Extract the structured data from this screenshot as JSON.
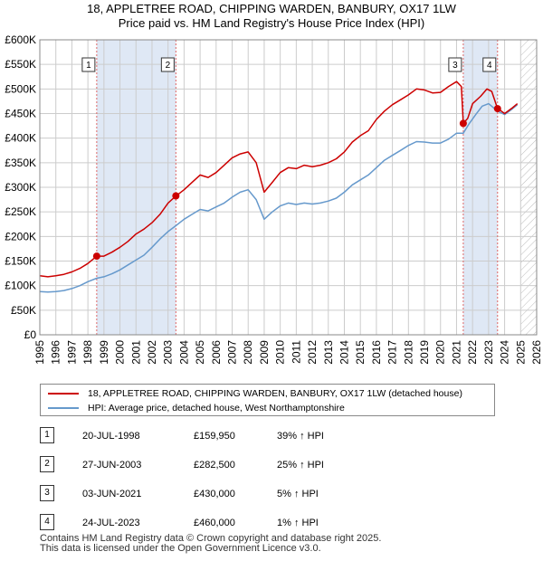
{
  "header": {
    "title_line1": "18, APPLETREE ROAD, CHIPPING WARDEN, BANBURY, OX17 1LW",
    "title_line2": "Price paid vs. HM Land Registry's House Price Index (HPI)"
  },
  "colors": {
    "property": "#cc0000",
    "hpi": "#6699cc",
    "shade": "#dfe8f5",
    "marker_line": "#dd6666",
    "grid": "#cccccc"
  },
  "chart_data": {
    "type": "line",
    "xlim": [
      1995,
      2026
    ],
    "ylim": [
      0,
      600000
    ],
    "x_ticks": [
      "1995",
      "1996",
      "1997",
      "1998",
      "1999",
      "2000",
      "2001",
      "2002",
      "2003",
      "2004",
      "2005",
      "2006",
      "2007",
      "2008",
      "2009",
      "2010",
      "2011",
      "2012",
      "2013",
      "2014",
      "2015",
      "2016",
      "2017",
      "2018",
      "2019",
      "2020",
      "2021",
      "2022",
      "2023",
      "2024",
      "2025",
      "2026"
    ],
    "y_ticks": [
      {
        "value": 0,
        "label": "£0"
      },
      {
        "value": 50000,
        "label": "£50K"
      },
      {
        "value": 100000,
        "label": "£100K"
      },
      {
        "value": 150000,
        "label": "£150K"
      },
      {
        "value": 200000,
        "label": "£200K"
      },
      {
        "value": 250000,
        "label": "£250K"
      },
      {
        "value": 300000,
        "label": "£300K"
      },
      {
        "value": 350000,
        "label": "£350K"
      },
      {
        "value": 400000,
        "label": "£400K"
      },
      {
        "value": 450000,
        "label": "£450K"
      },
      {
        "value": 500000,
        "label": "£500K"
      },
      {
        "value": 550000,
        "label": "£550K"
      },
      {
        "value": 600000,
        "label": "£600K"
      }
    ],
    "shaded_ranges": [
      [
        1998.55,
        2003.49
      ],
      [
        2021.42,
        2023.56
      ]
    ],
    "hatch_from": 2025.0,
    "series": [
      {
        "name": "18, APPLETREE ROAD, CHIPPING WARDEN, BANBURY, OX17 1LW (detached house)",
        "points": [
          [
            1995.0,
            120000
          ],
          [
            1995.5,
            118000
          ],
          [
            1996.0,
            120000
          ],
          [
            1996.5,
            123000
          ],
          [
            1997.0,
            128000
          ],
          [
            1997.5,
            135000
          ],
          [
            1998.0,
            145000
          ],
          [
            1998.55,
            159950
          ],
          [
            1999.0,
            160000
          ],
          [
            1999.5,
            168000
          ],
          [
            2000.0,
            178000
          ],
          [
            2000.5,
            190000
          ],
          [
            2001.0,
            205000
          ],
          [
            2001.5,
            215000
          ],
          [
            2002.0,
            228000
          ],
          [
            2002.5,
            245000
          ],
          [
            2003.0,
            268000
          ],
          [
            2003.49,
            282500
          ],
          [
            2003.6,
            285000
          ],
          [
            2004.0,
            295000
          ],
          [
            2004.5,
            310000
          ],
          [
            2005.0,
            325000
          ],
          [
            2005.5,
            320000
          ],
          [
            2006.0,
            330000
          ],
          [
            2006.5,
            345000
          ],
          [
            2007.0,
            360000
          ],
          [
            2007.5,
            368000
          ],
          [
            2008.0,
            372000
          ],
          [
            2008.5,
            350000
          ],
          [
            2009.0,
            290000
          ],
          [
            2009.5,
            310000
          ],
          [
            2010.0,
            330000
          ],
          [
            2010.5,
            340000
          ],
          [
            2011.0,
            338000
          ],
          [
            2011.5,
            345000
          ],
          [
            2012.0,
            342000
          ],
          [
            2012.5,
            345000
          ],
          [
            2013.0,
            350000
          ],
          [
            2013.5,
            358000
          ],
          [
            2014.0,
            372000
          ],
          [
            2014.5,
            392000
          ],
          [
            2015.0,
            405000
          ],
          [
            2015.5,
            415000
          ],
          [
            2016.0,
            438000
          ],
          [
            2016.5,
            455000
          ],
          [
            2017.0,
            468000
          ],
          [
            2017.5,
            478000
          ],
          [
            2018.0,
            488000
          ],
          [
            2018.5,
            500000
          ],
          [
            2019.0,
            498000
          ],
          [
            2019.5,
            492000
          ],
          [
            2020.0,
            493000
          ],
          [
            2020.5,
            505000
          ],
          [
            2021.0,
            515000
          ],
          [
            2021.3,
            505000
          ],
          [
            2021.42,
            430000
          ],
          [
            2021.7,
            440000
          ],
          [
            2022.0,
            470000
          ],
          [
            2022.5,
            485000
          ],
          [
            2022.9,
            500000
          ],
          [
            2023.2,
            495000
          ],
          [
            2023.56,
            460000
          ],
          [
            2023.8,
            455000
          ],
          [
            2024.0,
            450000
          ],
          [
            2024.5,
            462000
          ],
          [
            2024.8,
            470000
          ]
        ]
      },
      {
        "name": "HPI: Average price, detached house, West Northamptonshire",
        "points": [
          [
            1995.0,
            88000
          ],
          [
            1995.5,
            87000
          ],
          [
            1996.0,
            88000
          ],
          [
            1996.5,
            90000
          ],
          [
            1997.0,
            94000
          ],
          [
            1997.5,
            100000
          ],
          [
            1998.0,
            108000
          ],
          [
            1998.55,
            115000
          ],
          [
            1999.0,
            118000
          ],
          [
            1999.5,
            124000
          ],
          [
            2000.0,
            132000
          ],
          [
            2000.5,
            142000
          ],
          [
            2001.0,
            152000
          ],
          [
            2001.5,
            162000
          ],
          [
            2002.0,
            178000
          ],
          [
            2002.5,
            195000
          ],
          [
            2003.0,
            210000
          ],
          [
            2003.49,
            222000
          ],
          [
            2004.0,
            235000
          ],
          [
            2004.5,
            245000
          ],
          [
            2005.0,
            255000
          ],
          [
            2005.5,
            252000
          ],
          [
            2006.0,
            260000
          ],
          [
            2006.5,
            268000
          ],
          [
            2007.0,
            280000
          ],
          [
            2007.5,
            290000
          ],
          [
            2008.0,
            295000
          ],
          [
            2008.5,
            275000
          ],
          [
            2009.0,
            235000
          ],
          [
            2009.5,
            250000
          ],
          [
            2010.0,
            262000
          ],
          [
            2010.5,
            268000
          ],
          [
            2011.0,
            265000
          ],
          [
            2011.5,
            268000
          ],
          [
            2012.0,
            266000
          ],
          [
            2012.5,
            268000
          ],
          [
            2013.0,
            272000
          ],
          [
            2013.5,
            278000
          ],
          [
            2014.0,
            290000
          ],
          [
            2014.5,
            305000
          ],
          [
            2015.0,
            315000
          ],
          [
            2015.5,
            325000
          ],
          [
            2016.0,
            340000
          ],
          [
            2016.5,
            355000
          ],
          [
            2017.0,
            365000
          ],
          [
            2017.5,
            375000
          ],
          [
            2018.0,
            385000
          ],
          [
            2018.5,
            393000
          ],
          [
            2019.0,
            392000
          ],
          [
            2019.5,
            390000
          ],
          [
            2020.0,
            390000
          ],
          [
            2020.5,
            398000
          ],
          [
            2021.0,
            410000
          ],
          [
            2021.42,
            410000
          ],
          [
            2021.8,
            430000
          ],
          [
            2022.2,
            448000
          ],
          [
            2022.6,
            465000
          ],
          [
            2023.0,
            470000
          ],
          [
            2023.56,
            455000
          ],
          [
            2024.0,
            448000
          ],
          [
            2024.5,
            460000
          ],
          [
            2024.8,
            468000
          ]
        ]
      }
    ],
    "markers": [
      {
        "label": "1",
        "x": 1998.55,
        "y": 159950
      },
      {
        "label": "2",
        "x": 2003.49,
        "y": 282500
      },
      {
        "label": "3",
        "x": 2021.42,
        "y": 430000
      },
      {
        "label": "4",
        "x": 2023.56,
        "y": 460000
      }
    ]
  },
  "legend": {
    "property_label": "18, APPLETREE ROAD, CHIPPING WARDEN, BANBURY, OX17 1LW (detached house)",
    "hpi_label": "HPI: Average price, detached house, West Northamptonshire"
  },
  "sales": [
    {
      "num": "1",
      "date": "20-JUL-1998",
      "price": "£159,950",
      "hpi": "39% ↑ HPI"
    },
    {
      "num": "2",
      "date": "27-JUN-2003",
      "price": "£282,500",
      "hpi": "25% ↑ HPI"
    },
    {
      "num": "3",
      "date": "03-JUN-2021",
      "price": "£430,000",
      "hpi": "5% ↑ HPI"
    },
    {
      "num": "4",
      "date": "24-JUL-2023",
      "price": "£460,000",
      "hpi": "1% ↑ HPI"
    }
  ],
  "footer": {
    "line1": "Contains HM Land Registry data © Crown copyright and database right 2025.",
    "line2": "This data is licensed under the Open Government Licence v3.0."
  }
}
